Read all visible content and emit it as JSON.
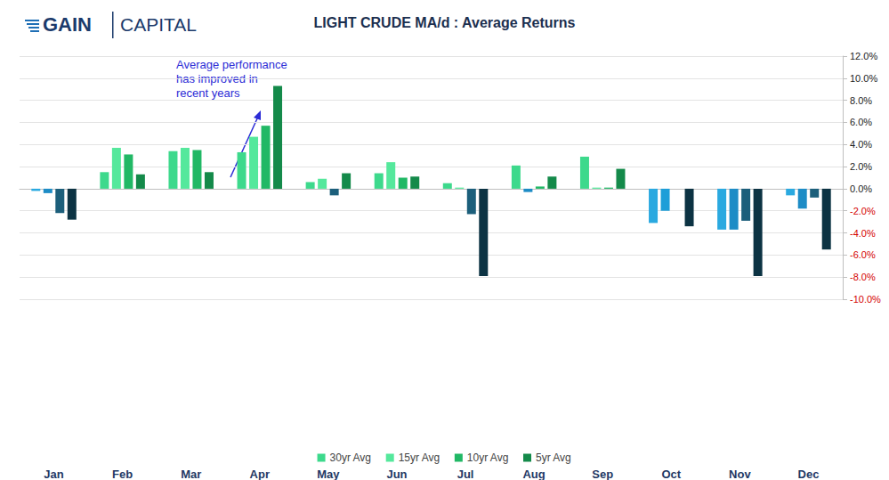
{
  "chart_data": {
    "type": "bar",
    "title": "LIGHT CRUDE MA/d : Average Returns",
    "logo": [
      "GAIN",
      "CAPITAL"
    ],
    "annotation": [
      "Average performance",
      "has improved in",
      "recent years"
    ],
    "categories": [
      "Jan",
      "Feb",
      "Mar",
      "Apr",
      "May",
      "Jun",
      "Jul",
      "Aug",
      "Sep",
      "Oct",
      "Nov",
      "Dec"
    ],
    "series": [
      {
        "name": "30yr Avg",
        "color": "#3dd98c",
        "values": [
          -0.2,
          1.5,
          3.4,
          3.3,
          0.6,
          1.4,
          0.5,
          2.1,
          2.9,
          -3.1,
          -3.7,
          -0.6
        ],
        "colors": [
          "#2aa9e0",
          "#3dd98c",
          "#3dd98c",
          "#3dd98c",
          "#3dd98c",
          "#3dd98c",
          "#3dd98c",
          "#3dd98c",
          "#3dd98c",
          "#2aa9e0",
          "#2aa9e0",
          "#2aa9e0"
        ]
      },
      {
        "name": "15yr Avg",
        "color": "#55e89c",
        "values": [
          -0.4,
          3.7,
          3.7,
          4.7,
          0.9,
          2.4,
          0.1,
          -0.3,
          0.1,
          -2.0,
          -3.7,
          -1.8
        ],
        "colors": [
          "#1d8cc6",
          "#55e89c",
          "#55e89c",
          "#55e89c",
          "#55e89c",
          "#55e89c",
          "#55e89c",
          "#1d8cc6",
          "#55e89c",
          "#1d9ed8",
          "#1d8cc6",
          "#1d8cc6"
        ]
      },
      {
        "name": "10yr Avg",
        "color": "#21b865",
        "values": [
          -2.2,
          3.1,
          3.5,
          5.7,
          -0.6,
          1.0,
          -2.3,
          0.2,
          0.1,
          0.0,
          -2.9,
          -0.8
        ],
        "colors": [
          "#1c5f7b",
          "#21b865",
          "#21b865",
          "#21b865",
          "#1c5f7b",
          "#21b865",
          "#1c5f7b",
          "#21b865",
          "#21b865",
          "#21b865",
          "#1c5f7b",
          "#1c5f7b"
        ]
      },
      {
        "name": "5yr Avg",
        "color": "#148a4a",
        "values": [
          -2.8,
          1.3,
          1.5,
          9.3,
          1.4,
          1.1,
          -7.9,
          1.1,
          1.8,
          -3.4,
          -7.9,
          -5.5
        ],
        "colors": [
          "#0c3343",
          "#148a4a",
          "#148a4a",
          "#148a4a",
          "#148a4a",
          "#148a4a",
          "#0c3343",
          "#148a4a",
          "#148a4a",
          "#0c3343",
          "#0c3343",
          "#0c3343"
        ]
      }
    ],
    "ylim": [
      -10,
      12
    ],
    "yticks": [
      {
        "value": -10,
        "label": "-10.0%"
      },
      {
        "value": -8,
        "label": "-8.0%"
      },
      {
        "value": -6,
        "label": "-6.0%"
      },
      {
        "value": -4,
        "label": "-4.0%"
      },
      {
        "value": -2,
        "label": "-2.0%"
      },
      {
        "value": 0,
        "label": "0.0%"
      },
      {
        "value": 2,
        "label": "2.0%"
      },
      {
        "value": 4,
        "label": "4.0%"
      },
      {
        "value": 6,
        "label": "6.0%"
      },
      {
        "value": 8,
        "label": "8.0%"
      },
      {
        "value": 10,
        "label": "10.0%"
      },
      {
        "value": 12,
        "label": "12.0%"
      }
    ],
    "grid": true,
    "legend": "bottom"
  }
}
